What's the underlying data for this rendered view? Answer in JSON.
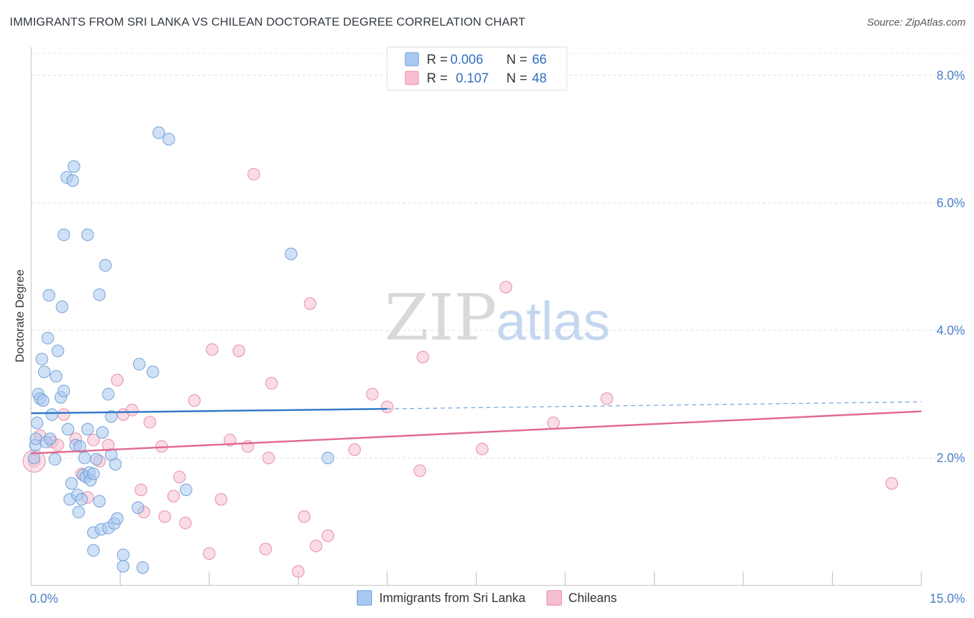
{
  "header": {
    "title": "IMMIGRANTS FROM SRI LANKA VS CHILEAN DOCTORATE DEGREE CORRELATION CHART",
    "source": "Source: ZipAtlas.com"
  },
  "colors": {
    "blue_fill": "#a9c8ef",
    "blue_stroke": "#6f9fd8",
    "blue_line": "#2f78c8",
    "pink_fill": "#f6bfd0",
    "pink_stroke": "#e88aa8",
    "pink_line": "#e2698f",
    "axis_text": "#4a7fc9"
  },
  "watermark": {
    "zip": "ZIP",
    "atlas": "atlas"
  },
  "chart_data": {
    "type": "scatter",
    "title": "IMMIGRANTS FROM SRI LANKA VS CHILEAN DOCTORATE DEGREE CORRELATION CHART",
    "xlabel": "",
    "ylabel": "Doctorate Degree",
    "xlim": [
      0,
      15
    ],
    "ylim": [
      0,
      8.4
    ],
    "x_tick_labels": [
      "0.0%",
      "15.0%"
    ],
    "y_ticks": [
      2,
      4,
      6,
      8
    ],
    "y_tick_labels": [
      "2.0%",
      "4.0%",
      "6.0%",
      "8.0%"
    ],
    "grid": true,
    "legend": {
      "placement": "top-center",
      "entries": [
        {
          "r_label": "R =",
          "r_value": "0.006",
          "n_label": "N =",
          "n_value": "66"
        },
        {
          "r_label": "R =",
          "r_value": "0.107",
          "n_label": "N =",
          "n_value": "48"
        }
      ]
    },
    "series": [
      {
        "name": "Immigrants from Sri Lanka",
        "color": "blue",
        "trend": {
          "x0": 0,
          "y0": 2.7,
          "x1": 6.0,
          "y1": 2.77,
          "dash_x1": 15.0,
          "dash_y1": 2.88
        },
        "points": [
          [
            0.05,
            2.0
          ],
          [
            0.07,
            2.2
          ],
          [
            0.08,
            2.3
          ],
          [
            0.1,
            2.55
          ],
          [
            0.12,
            3.0
          ],
          [
            0.15,
            2.93
          ],
          [
            0.18,
            3.55
          ],
          [
            0.2,
            2.9
          ],
          [
            0.22,
            3.35
          ],
          [
            0.25,
            2.25
          ],
          [
            0.28,
            3.88
          ],
          [
            0.3,
            4.55
          ],
          [
            0.32,
            2.3
          ],
          [
            0.35,
            2.68
          ],
          [
            0.4,
            1.98
          ],
          [
            0.42,
            3.28
          ],
          [
            0.45,
            3.68
          ],
          [
            0.5,
            2.95
          ],
          [
            0.52,
            4.37
          ],
          [
            0.55,
            3.05
          ],
          [
            0.55,
            5.5
          ],
          [
            0.6,
            6.4
          ],
          [
            0.62,
            2.45
          ],
          [
            0.65,
            1.35
          ],
          [
            0.68,
            1.6
          ],
          [
            0.7,
            6.35
          ],
          [
            0.72,
            6.57
          ],
          [
            0.75,
            2.2
          ],
          [
            0.78,
            1.42
          ],
          [
            0.8,
            1.15
          ],
          [
            0.82,
            2.18
          ],
          [
            0.85,
            1.35
          ],
          [
            0.88,
            1.73
          ],
          [
            0.9,
            2.0
          ],
          [
            0.92,
            1.7
          ],
          [
            0.95,
            2.45
          ],
          [
            0.95,
            5.5
          ],
          [
            0.98,
            1.77
          ],
          [
            1.0,
            1.65
          ],
          [
            1.05,
            0.55
          ],
          [
            1.05,
            1.75
          ],
          [
            1.05,
            0.83
          ],
          [
            1.1,
            1.98
          ],
          [
            1.15,
            4.56
          ],
          [
            1.15,
            1.32
          ],
          [
            1.18,
            0.88
          ],
          [
            1.2,
            2.4
          ],
          [
            1.25,
            5.02
          ],
          [
            1.3,
            3.0
          ],
          [
            1.3,
            0.9
          ],
          [
            1.35,
            2.65
          ],
          [
            1.35,
            2.05
          ],
          [
            1.4,
            0.97
          ],
          [
            1.42,
            1.9
          ],
          [
            1.45,
            1.05
          ],
          [
            1.55,
            0.48
          ],
          [
            1.55,
            0.3
          ],
          [
            1.8,
            1.22
          ],
          [
            1.82,
            3.47
          ],
          [
            1.88,
            0.28
          ],
          [
            2.05,
            3.35
          ],
          [
            2.15,
            7.1
          ],
          [
            2.32,
            7.0
          ],
          [
            2.61,
            1.5
          ],
          [
            4.38,
            5.2
          ],
          [
            5.0,
            2.0
          ]
        ]
      },
      {
        "name": "Chileans",
        "color": "pink",
        "trend": {
          "x0": 0,
          "y0": 2.07,
          "x1": 15.0,
          "y1": 2.73
        },
        "points": [
          [
            0.05,
            1.95
          ],
          [
            0.15,
            2.35
          ],
          [
            0.35,
            2.25
          ],
          [
            0.45,
            2.2
          ],
          [
            0.55,
            2.68
          ],
          [
            0.75,
            2.3
          ],
          [
            0.85,
            1.75
          ],
          [
            0.95,
            1.38
          ],
          [
            1.05,
            2.28
          ],
          [
            1.15,
            1.95
          ],
          [
            1.3,
            2.2
          ],
          [
            1.45,
            3.22
          ],
          [
            1.55,
            2.68
          ],
          [
            1.7,
            2.75
          ],
          [
            1.85,
            1.5
          ],
          [
            1.9,
            1.15
          ],
          [
            2.0,
            2.56
          ],
          [
            2.2,
            2.18
          ],
          [
            2.25,
            1.08
          ],
          [
            2.4,
            1.4
          ],
          [
            2.5,
            1.7
          ],
          [
            2.6,
            0.98
          ],
          [
            2.75,
            2.9
          ],
          [
            3.0,
            0.5
          ],
          [
            3.05,
            3.7
          ],
          [
            3.2,
            1.35
          ],
          [
            3.35,
            2.28
          ],
          [
            3.5,
            3.68
          ],
          [
            3.65,
            2.18
          ],
          [
            3.75,
            6.45
          ],
          [
            3.95,
            0.57
          ],
          [
            4.05,
            3.17
          ],
          [
            4.0,
            2.0
          ],
          [
            4.5,
            0.22
          ],
          [
            4.6,
            1.08
          ],
          [
            4.7,
            4.42
          ],
          [
            4.8,
            0.62
          ],
          [
            5.0,
            0.78
          ],
          [
            5.45,
            2.13
          ],
          [
            5.75,
            3.0
          ],
          [
            6.0,
            2.8
          ],
          [
            6.55,
            1.8
          ],
          [
            6.6,
            3.58
          ],
          [
            7.6,
            2.14
          ],
          [
            8.0,
            4.68
          ],
          [
            8.8,
            2.55
          ],
          [
            9.7,
            2.93
          ],
          [
            14.5,
            1.6
          ]
        ]
      }
    ]
  }
}
